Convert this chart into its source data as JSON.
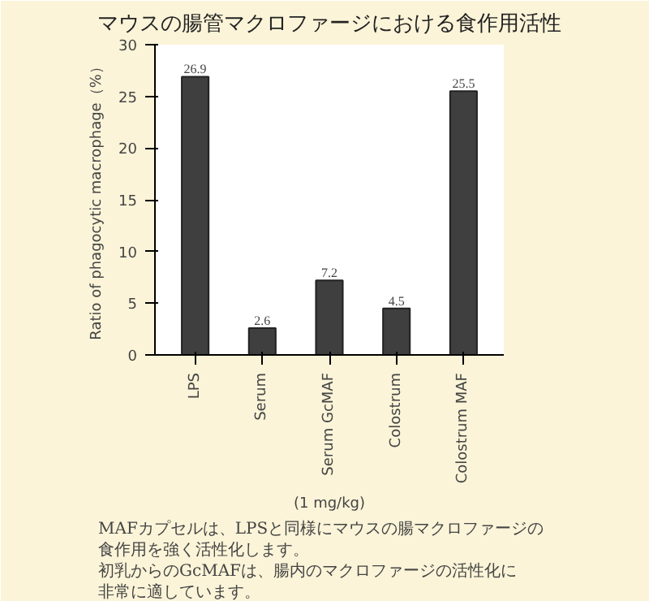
{
  "chart_data": {
    "type": "bar",
    "title": "マウスの腸管マクロファージにおける食作用活性",
    "categories": [
      "LPS",
      "Serum",
      "Serum GcMAF",
      "Colostrum",
      "Colostrum MAF"
    ],
    "values": [
      26.9,
      2.6,
      7.2,
      4.5,
      25.5
    ],
    "color": "#3f3f3f",
    "ylabel": "Ratio of phagocytic macrophage（%）",
    "xlabel": "(1 mg/kg)",
    "ylim": [
      0,
      30
    ],
    "yticks": [
      0,
      5,
      10,
      15,
      20,
      25,
      30
    ],
    "data_labels": true,
    "grid": false,
    "annotations": [
      "MAFカプセルは、LPSと同様にマウスの腸マクロファージの",
      "食作用を強く活性化します。",
      "初乳からのGcMAFは、腸内のマクロファージの活性化に",
      "非常に適しています。"
    ]
  }
}
